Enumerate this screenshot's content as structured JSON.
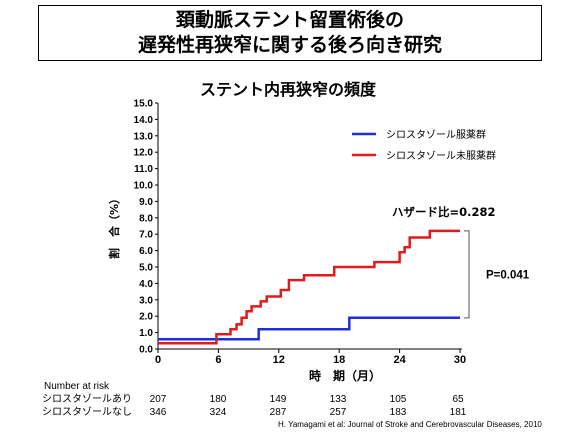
{
  "slide": {
    "title_line1": "頚動脈ステント留置術後の",
    "title_line2": "遅発性再狭窄に関する後ろ向き研究",
    "citation": "H. Yamagami et al: Journal of Stroke and Cerebrovascular Diseases, 2010"
  },
  "chart_data": {
    "type": "line",
    "step": true,
    "title": "ステント内再狭窄の頻度",
    "ylabel": "割　合（%）",
    "xlabel": "時　期（月）",
    "xlim": [
      0,
      30
    ],
    "ylim": [
      0,
      15
    ],
    "x_ticks": [
      "0",
      "6",
      "12",
      "18",
      "24",
      "30"
    ],
    "y_ticks": [
      "0.0",
      "1.0",
      "2.0",
      "3.0",
      "4.0",
      "5.0",
      "6.0",
      "7.0",
      "8.0",
      "9.0",
      "10.0",
      "11.0",
      "12.0",
      "13.0",
      "14.0",
      "15.0"
    ],
    "grid": false,
    "legend_position": "top-right",
    "series": [
      {
        "name": "シロスタゾール服薬群",
        "color": "#1f2fd6",
        "points": [
          [
            0,
            0.6
          ],
          [
            10,
            0.6
          ],
          [
            10,
            1.2
          ],
          [
            19,
            1.2
          ],
          [
            19,
            1.9
          ],
          [
            30,
            1.9
          ]
        ]
      },
      {
        "name": "シロスタゾール未服薬群",
        "color": "#e01b1b",
        "points": [
          [
            0,
            0.35
          ],
          [
            5.8,
            0.35
          ],
          [
            5.8,
            0.9
          ],
          [
            7.2,
            0.9
          ],
          [
            7.2,
            1.2
          ],
          [
            7.8,
            1.2
          ],
          [
            7.8,
            1.5
          ],
          [
            8.3,
            1.5
          ],
          [
            8.3,
            1.9
          ],
          [
            8.8,
            1.9
          ],
          [
            8.8,
            2.3
          ],
          [
            9.3,
            2.3
          ],
          [
            9.3,
            2.6
          ],
          [
            10.2,
            2.6
          ],
          [
            10.2,
            2.9
          ],
          [
            10.8,
            2.9
          ],
          [
            10.8,
            3.2
          ],
          [
            12.2,
            3.2
          ],
          [
            12.2,
            3.6
          ],
          [
            13.0,
            3.6
          ],
          [
            13.0,
            4.2
          ],
          [
            14.5,
            4.2
          ],
          [
            14.5,
            4.5
          ],
          [
            17.5,
            4.5
          ],
          [
            17.5,
            5.0
          ],
          [
            21.5,
            5.0
          ],
          [
            21.5,
            5.3
          ],
          [
            24.0,
            5.3
          ],
          [
            24.0,
            5.9
          ],
          [
            24.5,
            5.9
          ],
          [
            24.5,
            6.2
          ],
          [
            25.0,
            6.2
          ],
          [
            25.0,
            6.8
          ],
          [
            27.0,
            6.8
          ],
          [
            27.0,
            7.2
          ],
          [
            30,
            7.2
          ]
        ]
      }
    ],
    "annotations": {
      "hazard_ratio": "ハザード比=0.282",
      "p_value": "P=0.041"
    }
  },
  "risk_table": {
    "header": "Number at risk",
    "rows": [
      {
        "label": "シロスタゾールあり",
        "values": [
          "207",
          "180",
          "149",
          "133",
          "105",
          "65"
        ]
      },
      {
        "label": "シロスタゾールなし",
        "values": [
          "346",
          "324",
          "287",
          "257",
          "183",
          "181"
        ]
      }
    ]
  }
}
